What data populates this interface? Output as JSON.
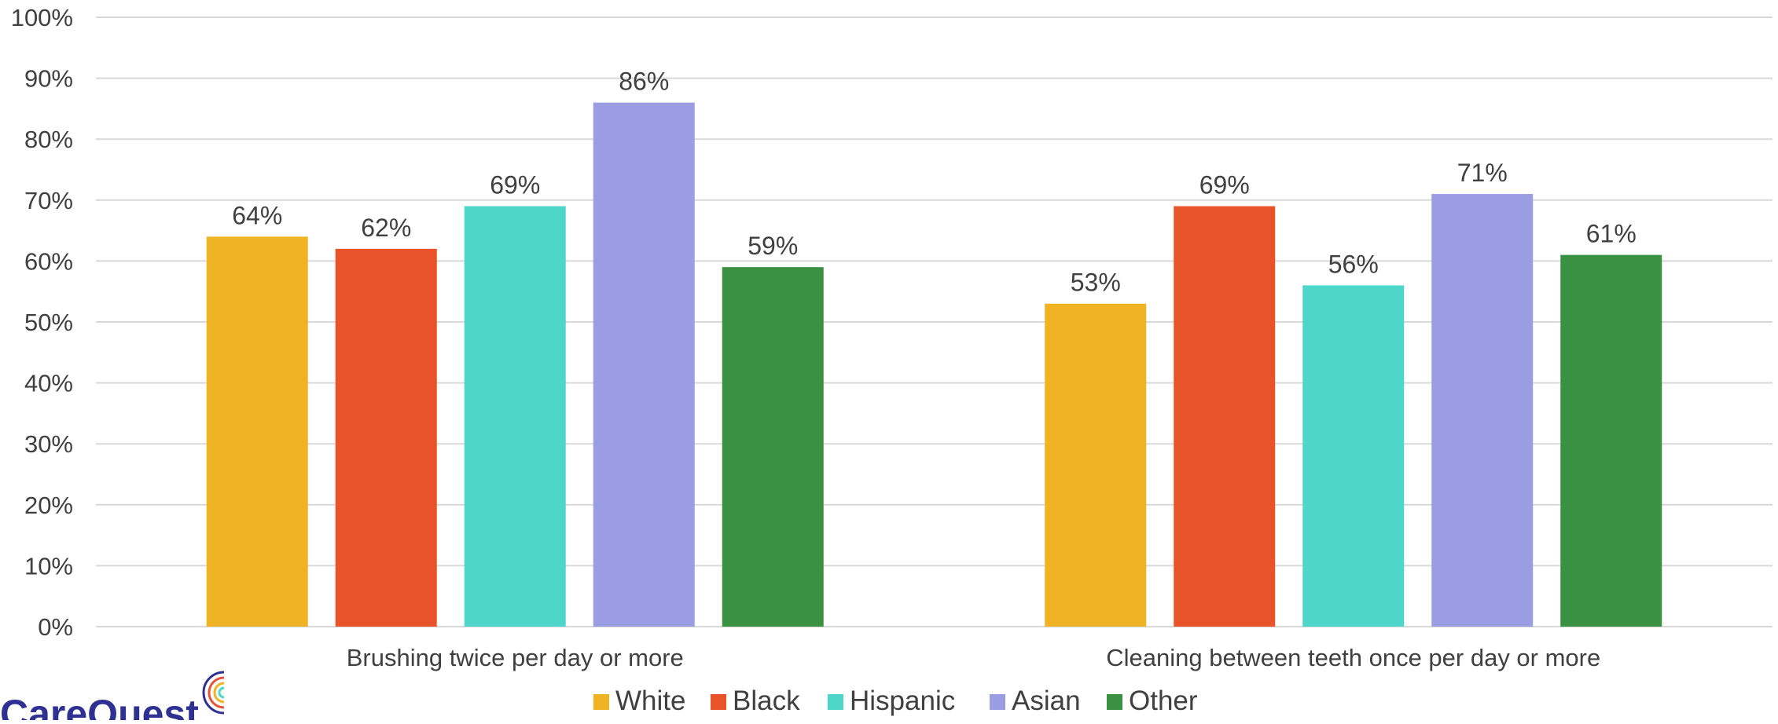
{
  "brand": {
    "name": "CareQuest",
    "name_color": "#2e3192",
    "mark_icon": "concentric-arcs-icon",
    "mark_colors": [
      "#2e3192",
      "#e5533d",
      "#f0b323",
      "#4dd6c9"
    ]
  },
  "chart_data": {
    "type": "bar",
    "categories": [
      "Brushing twice per day or more",
      "Cleaning between teeth once per day or more"
    ],
    "series": [
      {
        "name": "White",
        "values": [
          64,
          53
        ],
        "color": "#f0b323"
      },
      {
        "name": "Black",
        "values": [
          62,
          69
        ],
        "color": "#e9532a"
      },
      {
        "name": "Hispanic",
        "values": [
          69,
          56
        ],
        "color": "#4dd6c9"
      },
      {
        "name": "Asian",
        "values": [
          86,
          71
        ],
        "color": "#9b9de2"
      },
      {
        "name": "Other",
        "values": [
          59,
          61
        ],
        "color": "#3a9142"
      }
    ],
    "data_labels": [
      [
        "64%",
        "53%"
      ],
      [
        "62%",
        "69%"
      ],
      [
        "69%",
        "56%"
      ],
      [
        "86%",
        "71%"
      ],
      [
        "59%",
        "61%"
      ]
    ],
    "y_ticks": [
      "0%",
      "10%",
      "20%",
      "30%",
      "40%",
      "50%",
      "60%",
      "70%",
      "80%",
      "90%",
      "100%"
    ],
    "ylim": [
      0,
      100
    ],
    "grid": true,
    "legend_position": "bottom",
    "grid_color": "#d9d9d9",
    "text_color": "#404040"
  }
}
